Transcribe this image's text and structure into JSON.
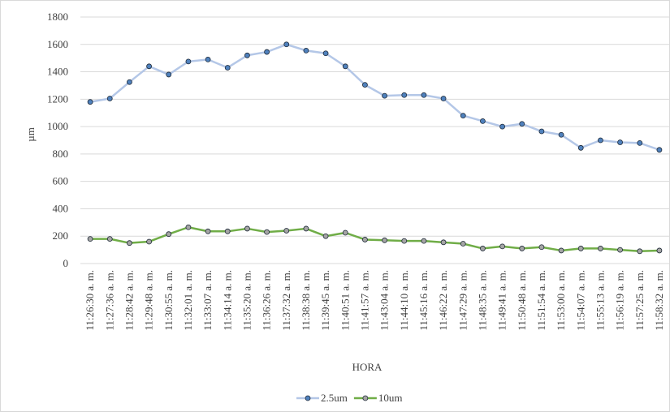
{
  "chart_data": {
    "type": "line",
    "categories": [
      "11:26:30 a. m.",
      "11:27:36 a. m.",
      "11:28:42 a. m.",
      "11:29:48 a. m.",
      "11:30:55 a. m.",
      "11:32:01 a. m.",
      "11:33:07 a. m.",
      "11:34:14 a. m.",
      "11:35:20 a. m.",
      "11:36:26 a. m.",
      "11:37:32 a. m.",
      "11:38:38 a. m.",
      "11:39:45 a. m.",
      "11:40:51 a. m.",
      "11:41:57 a. m.",
      "11:43:04 a. m.",
      "11:44:10 a. m.",
      "11:45:16 a. m.",
      "11:46:22 a. m.",
      "11:47:29 a. m.",
      "11:48:35 a. m.",
      "11:49:41 a. m.",
      "11:50:48 a. m.",
      "11:51:54 a. m.",
      "11:53:00 a. m.",
      "11:54:07 a. m.",
      "11:55:13 a. m.",
      "11:56:19 a. m.",
      "11:57:25 a. m.",
      "11:58:32 a. m."
    ],
    "series": [
      {
        "name": "2.5um",
        "color": "#b4c7e7",
        "marker_color": "#4f81bd",
        "values": [
          1180,
          1205,
          1325,
          1440,
          1380,
          1475,
          1490,
          1430,
          1520,
          1545,
          1600,
          1555,
          1535,
          1440,
          1305,
          1225,
          1230,
          1230,
          1205,
          1080,
          1040,
          1000,
          1020,
          965,
          940,
          845,
          900,
          885,
          880,
          830
        ]
      },
      {
        "name": "10um",
        "color": "#70ad47",
        "marker_color": "#a5a5a5",
        "values": [
          180,
          180,
          150,
          160,
          215,
          265,
          235,
          235,
          255,
          230,
          240,
          255,
          200,
          225,
          175,
          170,
          165,
          165,
          155,
          145,
          110,
          125,
          110,
          120,
          95,
          110,
          110,
          100,
          90,
          95
        ]
      }
    ],
    "xlabel": "HORA",
    "ylabel": "µm",
    "ylim": [
      0,
      1800
    ],
    "yticks": [
      0,
      200,
      400,
      600,
      800,
      1000,
      1200,
      1400,
      1600,
      1800
    ],
    "grid": true,
    "legend": "bottom"
  }
}
